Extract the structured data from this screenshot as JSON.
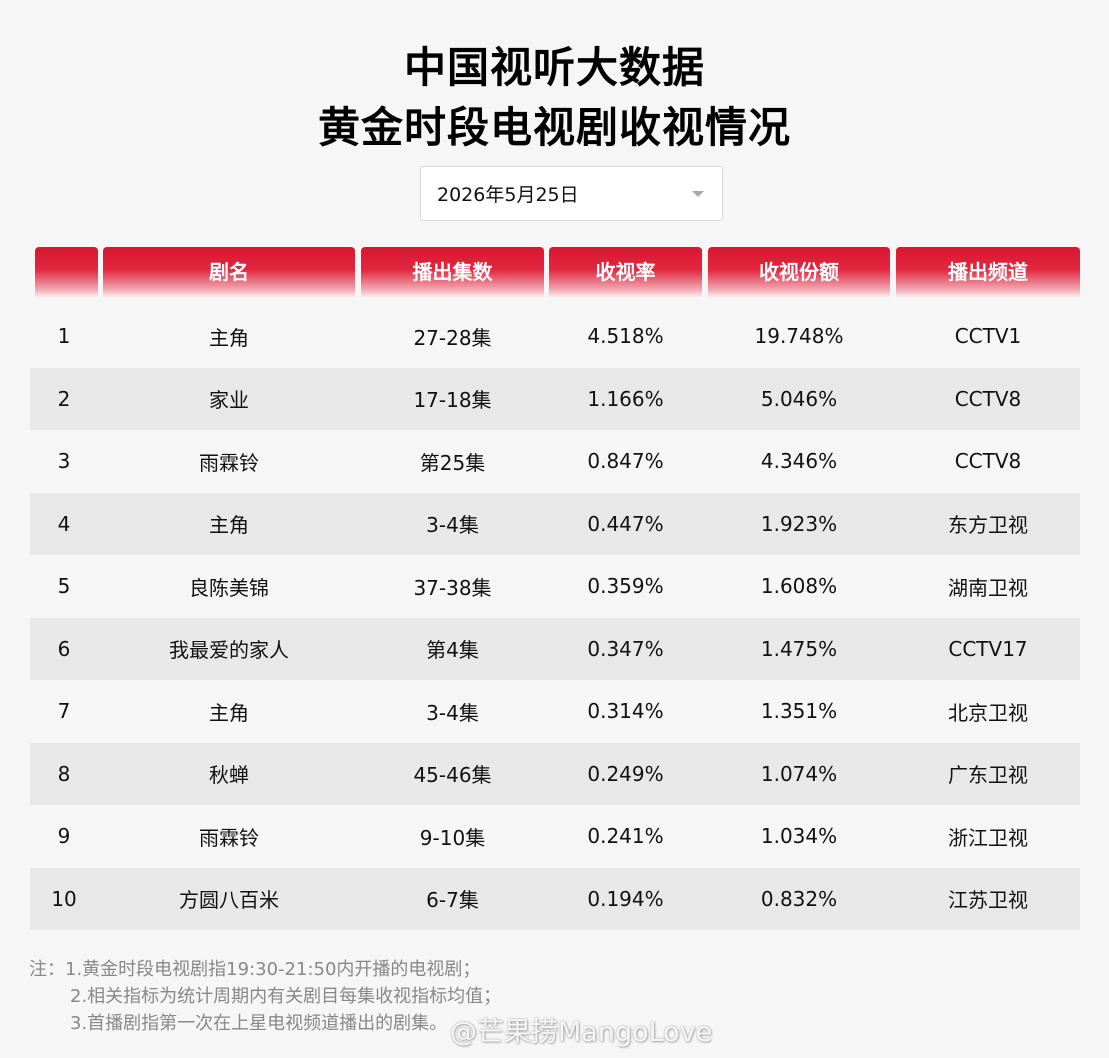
{
  "title": {
    "line1": "中国视听大数据",
    "line2": "黄金时段电视剧收视情况"
  },
  "date_select": {
    "value": "2026年5月25日",
    "caret_icon": "chevron-down-icon"
  },
  "table": {
    "headers": [
      "",
      "剧名",
      "播出集数",
      "收视率",
      "收视份额",
      "播出频道"
    ],
    "rows": [
      {
        "rank": "1",
        "name": "主角",
        "episodes": "27-28集",
        "rating": "4.518%",
        "share": "19.748%",
        "channel": "CCTV1"
      },
      {
        "rank": "2",
        "name": "家业",
        "episodes": "17-18集",
        "rating": "1.166%",
        "share": "5.046%",
        "channel": "CCTV8"
      },
      {
        "rank": "3",
        "name": "雨霖铃",
        "episodes": "第25集",
        "rating": "0.847%",
        "share": "4.346%",
        "channel": "CCTV8"
      },
      {
        "rank": "4",
        "name": "主角",
        "episodes": "3-4集",
        "rating": "0.447%",
        "share": "1.923%",
        "channel": "东方卫视"
      },
      {
        "rank": "5",
        "name": "良陈美锦",
        "episodes": "37-38集",
        "rating": "0.359%",
        "share": "1.608%",
        "channel": "湖南卫视"
      },
      {
        "rank": "6",
        "name": "我最爱的家人",
        "episodes": "第4集",
        "rating": "0.347%",
        "share": "1.475%",
        "channel": "CCTV17"
      },
      {
        "rank": "7",
        "name": "主角",
        "episodes": "3-4集",
        "rating": "0.314%",
        "share": "1.351%",
        "channel": "北京卫视"
      },
      {
        "rank": "8",
        "name": "秋蝉",
        "episodes": "45-46集",
        "rating": "0.249%",
        "share": "1.074%",
        "channel": "广东卫视"
      },
      {
        "rank": "9",
        "name": "雨霖铃",
        "episodes": "9-10集",
        "rating": "0.241%",
        "share": "1.034%",
        "channel": "浙江卫视"
      },
      {
        "rank": "10",
        "name": "方圆八百米",
        "episodes": "6-7集",
        "rating": "0.194%",
        "share": "0.832%",
        "channel": "江苏卫视"
      }
    ]
  },
  "notes": [
    "注：1.黄金时段电视剧指19:30-21:50内开播的电视剧；",
    "2.相关指标为统计周期内有关剧目每集收视指标均值；",
    "3.首播剧指第一次在上星电视频道播出的剧集。"
  ],
  "watermark": "@芒果捞MangoLove",
  "colors": {
    "header_red": "#d9162f",
    "row_alt": "#e8e8e8",
    "background": "#f6f6f6"
  }
}
